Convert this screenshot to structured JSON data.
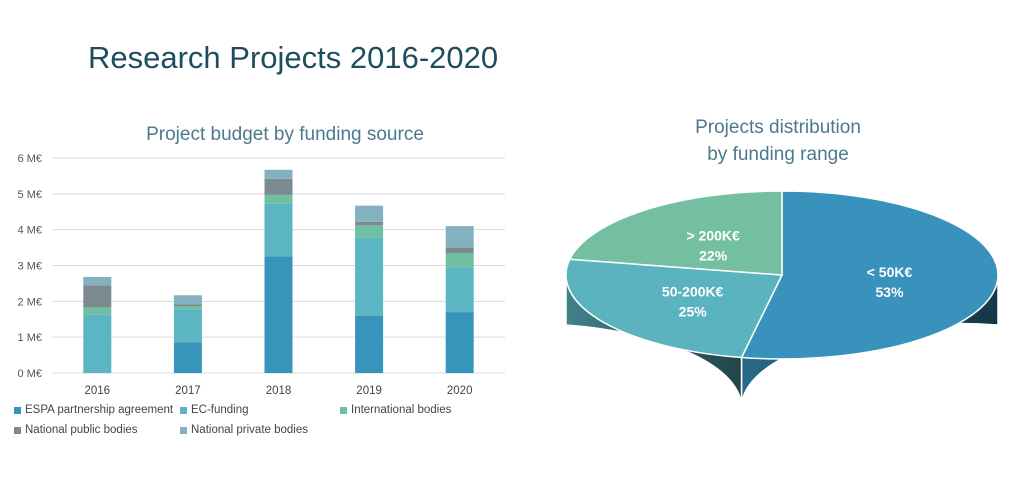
{
  "title": "Research Projects 2016-2020",
  "colors": {
    "title": "#1e4e5e",
    "subtitle": "#4a7a8c",
    "espa": "#3794bb",
    "ec": "#5bb5c2",
    "international": "#6fc0a2",
    "national_public": "#7c8a8f",
    "national_private": "#84b1c2",
    "pie_lt50": "#3892bb",
    "pie_50_200": "#5ab3bf",
    "pie_gt200": "#74bea2"
  },
  "chart_data": [
    {
      "type": "bar",
      "stacked": true,
      "title": "Project budget by funding source",
      "categories": [
        "2016",
        "2017",
        "2018",
        "2019",
        "2020"
      ],
      "y_ticks": [
        "0 M€",
        "1 M€",
        "2 M€",
        "3 M€",
        "4 M€",
        "5 M€",
        "6 M€"
      ],
      "ylim": [
        0,
        6
      ],
      "grid": true,
      "legend_position": "bottom",
      "series": [
        {
          "name": "ESPA partnership agreement",
          "color_key": "espa",
          "values": [
            0,
            0.85,
            3.25,
            1.6,
            1.7
          ]
        },
        {
          "name": "EC-funding",
          "color_key": "ec",
          "values": [
            1.63,
            0.92,
            1.47,
            2.17,
            1.25
          ]
        },
        {
          "name": "International bodies",
          "color_key": "international",
          "values": [
            0.2,
            0.1,
            0.25,
            0.35,
            0.4
          ]
        },
        {
          "name": "National public bodies",
          "color_key": "national_public",
          "values": [
            0.62,
            0.05,
            0.45,
            0.1,
            0.15
          ]
        },
        {
          "name": "National private bodies",
          "color_key": "national_private",
          "values": [
            0.23,
            0.25,
            0.25,
            0.45,
            0.6
          ]
        }
      ]
    },
    {
      "type": "pie",
      "three_d": true,
      "title": [
        "Projects distribution",
        "by funding range"
      ],
      "slices": [
        {
          "label": "< 50K€",
          "value": 53,
          "percent_label": "53%",
          "color_key": "pie_lt50"
        },
        {
          "label": "50-200K€",
          "value": 25,
          "percent_label": "25%",
          "color_key": "pie_50_200"
        },
        {
          "label": "> 200K€",
          "value": 22,
          "percent_label": "22%",
          "color_key": "pie_gt200"
        }
      ]
    }
  ]
}
